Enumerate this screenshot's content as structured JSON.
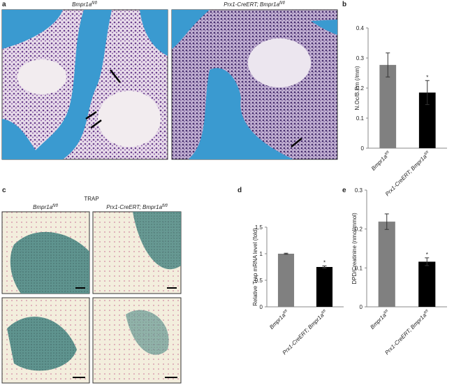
{
  "panel_labels": [
    "a",
    "b",
    "c",
    "d",
    "e"
  ],
  "image_captions": {
    "a_left": {
      "text": "Bmpr1a",
      "sup": "fl/fl"
    },
    "a_right": {
      "text": "Prx1-CreERT; Bmpr1a",
      "sup": "fl/fl"
    },
    "c_left": {
      "text": "Bmpr1a",
      "sup": "fl/fl"
    },
    "c_right": {
      "text": "Prx1-CreERT; Bmpr1a",
      "sup": "fl/fl"
    }
  },
  "stain_title": "TRAP",
  "chart_data": [
    {
      "type": "bar",
      "y_label": "N.Oc/B.Pm (/mm)",
      "categories": [
        "Bmpr1a",
        "Prx1-CreERT; Bmpr1a"
      ],
      "category_superscripts": [
        "fl/fl",
        "fl/fl"
      ],
      "values": [
        0.277,
        0.185
      ],
      "errors": [
        0.04,
        0.04
      ],
      "colors": [
        "#808080",
        "#000000"
      ],
      "significance": [
        null,
        "*"
      ],
      "ylim": [
        0,
        0.4
      ],
      "yticks": [
        0,
        0.1,
        0.2,
        0.3,
        0.4
      ]
    },
    {
      "type": "bar",
      "y_label": "Relative Trap mRNA level (fold)",
      "categories": [
        "Bmpr1a",
        "Prx1-CreERT; Bmpr1a"
      ],
      "category_superscripts": [
        "fl/fl",
        "fl/fl"
      ],
      "values": [
        1.0,
        0.75
      ],
      "errors": [
        0.01,
        0.02
      ],
      "colors": [
        "#808080",
        "#000000"
      ],
      "significance": [
        null,
        "*"
      ],
      "ylim": [
        0,
        1.5
      ],
      "yticks": [
        0,
        0.5,
        1,
        1.5
      ]
    },
    {
      "type": "bar",
      "y_label": "DPD/Creatinine (nmol/mmol)",
      "categories": [
        "Bmpr1a",
        "Prx1-CreERT; Bmpr1a"
      ],
      "category_superscripts": [
        "fl/fl",
        "fl/fl"
      ],
      "values": [
        0.219,
        0.116
      ],
      "errors": [
        0.02,
        0.01
      ],
      "colors": [
        "#808080",
        "#000000"
      ],
      "significance": [
        null,
        "*"
      ],
      "ylim": [
        0,
        0.3
      ],
      "yticks": [
        0,
        0.1,
        0.2,
        0.3
      ]
    }
  ]
}
